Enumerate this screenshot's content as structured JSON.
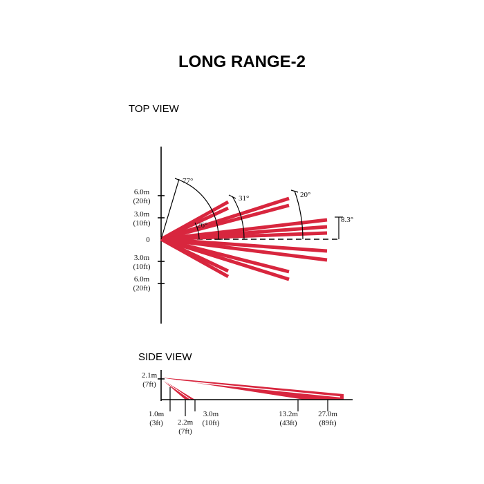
{
  "title": "LONG RANGE-2",
  "top_view": {
    "label": "TOP VIEW",
    "y_labels": [
      {
        "distance": "6.0m",
        "feet": "(20ft)"
      },
      {
        "distance": "3.0m",
        "feet": "(10ft)"
      },
      {
        "distance": "0"
      },
      {
        "distance": "3.0m",
        "feet": "(10ft)"
      },
      {
        "distance": "6.0m",
        "feet": "(20ft)"
      }
    ],
    "angles": [
      "77°",
      "31°",
      "26°",
      "20°",
      "8.3°"
    ]
  },
  "side_view": {
    "label": "SIDE VIEW",
    "height": {
      "distance": "2.1m",
      "feet": "(7ft)"
    },
    "ranges": [
      {
        "distance": "1.0m",
        "feet": "(3ft)"
      },
      {
        "distance": "2.2m",
        "feet": "(7ft)"
      },
      {
        "distance": "3.0m",
        "feet": "(10ft)"
      },
      {
        "distance": "13.2m",
        "feet": "(43ft)"
      },
      {
        "distance": "27.0m",
        "feet": "(89ft)"
      }
    ]
  }
}
